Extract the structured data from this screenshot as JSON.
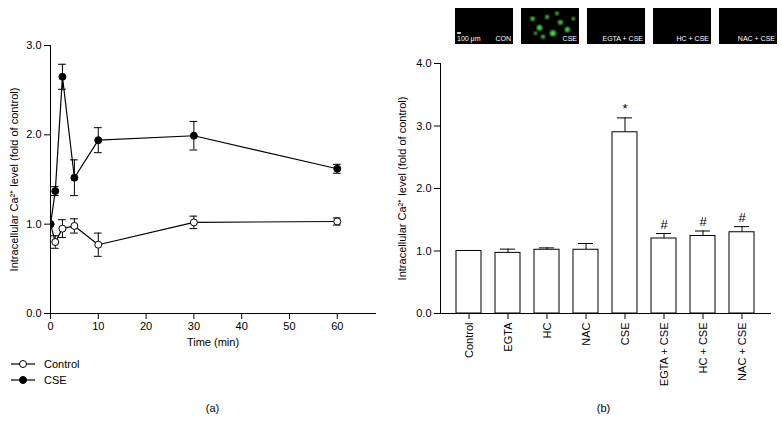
{
  "chart_data": [
    {
      "type": "line",
      "title": "(a)",
      "x_label": "Time (min)",
      "y_label": "Intracellular Ca²⁺ level (fold of control)",
      "x": [
        0,
        1,
        2.5,
        5,
        10,
        30,
        60
      ],
      "series": [
        {
          "name": "Control",
          "color": "#000000",
          "marker": "circle-open",
          "values": [
            1,
            0.8,
            0.95,
            0.98,
            0.77,
            1.02,
            1.03
          ],
          "errors": [
            0,
            0.07,
            0.1,
            0.08,
            0.13,
            0.07,
            0.04
          ]
        },
        {
          "name": "CSE",
          "color": "#000000",
          "marker": "circle",
          "values": [
            1,
            1.37,
            2.65,
            1.52,
            1.94,
            1.99,
            1.62
          ],
          "errors": [
            0,
            0.05,
            0.14,
            0.2,
            0.14,
            0.16,
            0.05
          ]
        }
      ],
      "xlim": [
        0,
        68
      ],
      "xticks": [
        0,
        10,
        20,
        30,
        40,
        50,
        60
      ],
      "ylim": [
        0,
        3
      ],
      "yticks": [
        0,
        1,
        2,
        3
      ],
      "grid": false,
      "legend": "bottom"
    },
    {
      "type": "bar",
      "title": "(b)",
      "y_label": "Intracellular Ca²⁺ level (fold of control)",
      "categories": [
        "Control",
        "EGTA",
        "HC",
        "NAC",
        "CSE",
        "EGTA + CSE",
        "HC + CSE",
        "NAC + CSE"
      ],
      "values": [
        1,
        0.97,
        1.02,
        1.02,
        2.9,
        1.2,
        1.24,
        1.3
      ],
      "errors": [
        0,
        0.06,
        0.03,
        0.1,
        0.23,
        0.08,
        0.08,
        0.09
      ],
      "significance": [
        null,
        null,
        null,
        null,
        "*",
        "#",
        "#",
        "#"
      ],
      "color": "#ffffff",
      "ylim": [
        0,
        4
      ],
      "yticks": [
        0,
        1,
        2,
        3,
        4
      ],
      "grid": false,
      "images": [
        {
          "label": "CON"
        },
        {
          "label": "CSE",
          "color": "#4cd64c"
        },
        {
          "label": "EGTA + CSE"
        },
        {
          "label": "HC + CSE"
        },
        {
          "label": "NAC + CSE"
        }
      ],
      "scale_bar": "100 μm"
    }
  ]
}
